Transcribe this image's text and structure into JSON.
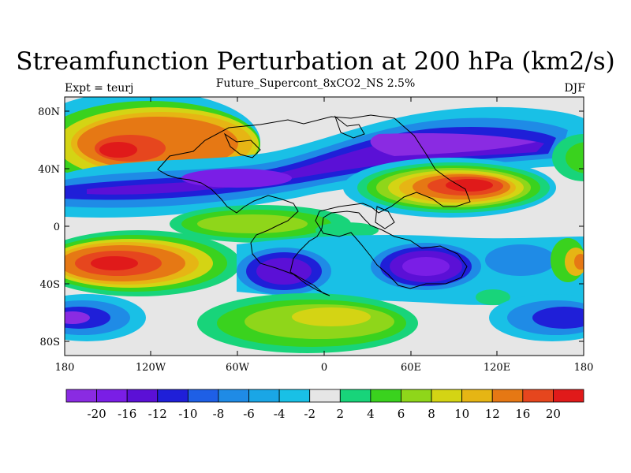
{
  "title": "Streamfunction Perturbation at 200 hPa (km2/s)",
  "subtitle": "Future_Supercont_8xCO2_NS 2.5%",
  "left_label": "Expt = teurj",
  "right_label": "DJF",
  "lat_ticks": [
    "80N",
    "40N",
    "0",
    "40S",
    "80S"
  ],
  "lon_ticks": [
    "180",
    "120W",
    "60W",
    "0",
    "60E",
    "120E",
    "180"
  ],
  "colorbar": {
    "labels": [
      "-20",
      "-16",
      "-12",
      "-10",
      "-8",
      "-6",
      "-4",
      "-2",
      "2",
      "4",
      "6",
      "8",
      "10",
      "12",
      "16",
      "20"
    ],
    "colors": [
      "#8a2be2",
      "#7a1ee6",
      "#5b10d6",
      "#1f1fd8",
      "#1e5fe6",
      "#1f8be6",
      "#1aa6e6",
      "#19c0e6",
      "#e6e6e6",
      "#18d47a",
      "#3ad21e",
      "#8fd61a",
      "#d4d414",
      "#e6b514",
      "#e67814",
      "#e6461e",
      "#e01a1a"
    ]
  }
}
